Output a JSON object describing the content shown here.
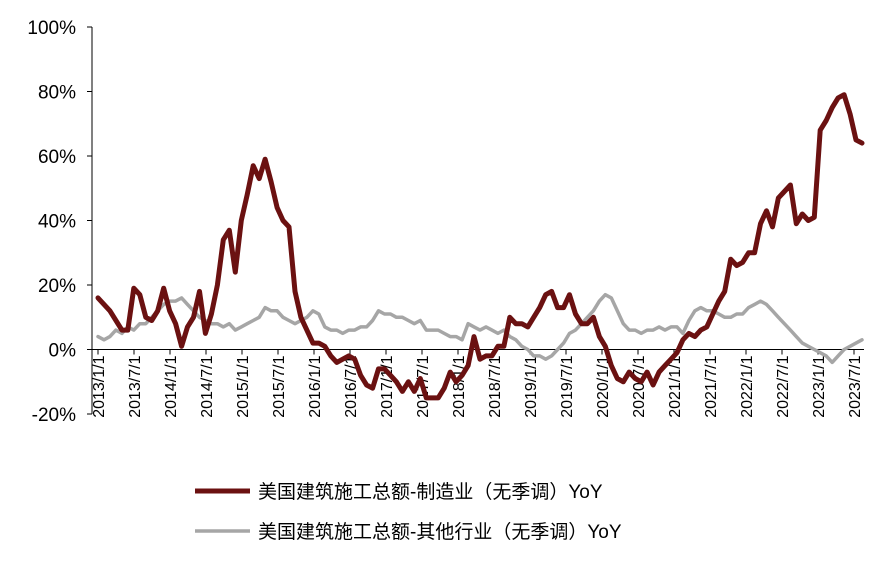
{
  "chart_data": {
    "type": "line",
    "title": "",
    "xlabel": "",
    "ylabel": "",
    "ylim": [
      -20,
      100
    ],
    "y_ticks": [
      -20,
      0,
      20,
      40,
      60,
      80,
      100
    ],
    "y_tick_labels": [
      "-20%",
      "0%",
      "20%",
      "40%",
      "60%",
      "80%",
      "100%"
    ],
    "x_start": "2013-01",
    "x_end": "2023-09",
    "x_tick_labels": [
      "2013/1/1",
      "2013/7/1",
      "2014/1/1",
      "2014/7/1",
      "2015/1/1",
      "2015/7/1",
      "2016/1/1",
      "2016/7/1",
      "2017/1/1",
      "2017/7/1",
      "2018/1/1",
      "2018/7/1",
      "2019/1/1",
      "2019/7/1",
      "2020/1/1",
      "2020/7/1",
      "2021/1/1",
      "2021/7/1",
      "2022/1/1",
      "2022/7/1",
      "2023/1/1",
      "2023/7/1"
    ],
    "legend_position": "bottom",
    "series": [
      {
        "name": "美国建筑施工总额-制造业（无季调）YoY",
        "color": "#6b1111",
        "points": [
          [
            "2013-01",
            16
          ],
          [
            "2013-03",
            12
          ],
          [
            "2013-05",
            6
          ],
          [
            "2013-06",
            6
          ],
          [
            "2013-07",
            19
          ],
          [
            "2013-08",
            17
          ],
          [
            "2013-09",
            10
          ],
          [
            "2013-10",
            9
          ],
          [
            "2013-11",
            12
          ],
          [
            "2013-12",
            19
          ],
          [
            "2014-01",
            12
          ],
          [
            "2014-02",
            8
          ],
          [
            "2014-03",
            1
          ],
          [
            "2014-04",
            7
          ],
          [
            "2014-05",
            10
          ],
          [
            "2014-06",
            18
          ],
          [
            "2014-07",
            5
          ],
          [
            "2014-08",
            11
          ],
          [
            "2014-09",
            20
          ],
          [
            "2014-10",
            34
          ],
          [
            "2014-11",
            37
          ],
          [
            "2014-12",
            24
          ],
          [
            "2015-01",
            40
          ],
          [
            "2015-02",
            48
          ],
          [
            "2015-03",
            57
          ],
          [
            "2015-04",
            53
          ],
          [
            "2015-05",
            59
          ],
          [
            "2015-06",
            52
          ],
          [
            "2015-07",
            44
          ],
          [
            "2015-08",
            40
          ],
          [
            "2015-09",
            38
          ],
          [
            "2015-10",
            18
          ],
          [
            "2015-11",
            10
          ],
          [
            "2016-01",
            2
          ],
          [
            "2016-02",
            2
          ],
          [
            "2016-03",
            1
          ],
          [
            "2016-04",
            -2
          ],
          [
            "2016-05",
            -4
          ],
          [
            "2016-06",
            -3
          ],
          [
            "2016-07",
            -2
          ],
          [
            "2016-08",
            -3
          ],
          [
            "2016-09",
            -8
          ],
          [
            "2016-10",
            -11
          ],
          [
            "2016-11",
            -12
          ],
          [
            "2016-12",
            -6
          ],
          [
            "2017-01",
            -6
          ],
          [
            "2017-02",
            -8
          ],
          [
            "2017-03",
            -10
          ],
          [
            "2017-04",
            -13
          ],
          [
            "2017-05",
            -10
          ],
          [
            "2017-06",
            -13
          ],
          [
            "2017-07",
            -9
          ],
          [
            "2017-08",
            -15
          ],
          [
            "2017-09",
            -15
          ],
          [
            "2017-10",
            -15
          ],
          [
            "2017-11",
            -12
          ],
          [
            "2017-12",
            -7
          ],
          [
            "2018-01",
            -10
          ],
          [
            "2018-02",
            -8
          ],
          [
            "2018-03",
            -5
          ],
          [
            "2018-04",
            4
          ],
          [
            "2018-05",
            -3
          ],
          [
            "2018-06",
            -2
          ],
          [
            "2018-07",
            -2
          ],
          [
            "2018-08",
            1
          ],
          [
            "2018-09",
            1
          ],
          [
            "2018-10",
            10
          ],
          [
            "2018-11",
            8
          ],
          [
            "2018-12",
            8
          ],
          [
            "2019-01",
            7
          ],
          [
            "2019-02",
            10
          ],
          [
            "2019-03",
            13
          ],
          [
            "2019-04",
            17
          ],
          [
            "2019-05",
            18
          ],
          [
            "2019-06",
            13
          ],
          [
            "2019-07",
            13
          ],
          [
            "2019-08",
            17
          ],
          [
            "2019-09",
            11
          ],
          [
            "2019-10",
            8
          ],
          [
            "2019-11",
            8
          ],
          [
            "2019-12",
            10
          ],
          [
            "2020-01",
            4
          ],
          [
            "2020-02",
            1
          ],
          [
            "2020-03",
            -5
          ],
          [
            "2020-04",
            -9
          ],
          [
            "2020-05",
            -10
          ],
          [
            "2020-06",
            -7
          ],
          [
            "2020-07",
            -9
          ],
          [
            "2020-08",
            -10
          ],
          [
            "2020-09",
            -7
          ],
          [
            "2020-10",
            -11
          ],
          [
            "2020-11",
            -7
          ],
          [
            "2020-12",
            -5
          ],
          [
            "2021-01",
            -3
          ],
          [
            "2021-02",
            -1
          ],
          [
            "2021-03",
            3
          ],
          [
            "2021-04",
            5
          ],
          [
            "2021-05",
            4
          ],
          [
            "2021-06",
            6
          ],
          [
            "2021-07",
            7
          ],
          [
            "2021-08",
            11
          ],
          [
            "2021-09",
            15
          ],
          [
            "2021-10",
            18
          ],
          [
            "2021-11",
            28
          ],
          [
            "2021-12",
            26
          ],
          [
            "2022-01",
            27
          ],
          [
            "2022-02",
            30
          ],
          [
            "2022-03",
            30
          ],
          [
            "2022-04",
            39
          ],
          [
            "2022-05",
            43
          ],
          [
            "2022-06",
            38
          ],
          [
            "2022-07",
            47
          ],
          [
            "2022-08",
            49
          ],
          [
            "2022-09",
            51
          ],
          [
            "2022-10",
            39
          ],
          [
            "2022-11",
            42
          ],
          [
            "2022-12",
            40
          ],
          [
            "2023-01",
            41
          ],
          [
            "2023-02",
            68
          ],
          [
            "2023-03",
            71
          ],
          [
            "2023-04",
            75
          ],
          [
            "2023-05",
            78
          ],
          [
            "2023-06",
            79
          ],
          [
            "2023-07",
            73
          ],
          [
            "2023-08",
            65
          ],
          [
            "2023-09",
            64
          ]
        ]
      },
      {
        "name": "美国建筑施工总额-其他行业（无季调）YoY",
        "color": "#a6a6a6",
        "points": [
          [
            "2013-01",
            4
          ],
          [
            "2013-02",
            3
          ],
          [
            "2013-03",
            4
          ],
          [
            "2013-04",
            6
          ],
          [
            "2013-05",
            5
          ],
          [
            "2013-06",
            7
          ],
          [
            "2013-07",
            6
          ],
          [
            "2013-08",
            8
          ],
          [
            "2013-09",
            8
          ],
          [
            "2013-10",
            10
          ],
          [
            "2013-11",
            12
          ],
          [
            "2013-12",
            14
          ],
          [
            "2014-01",
            15
          ],
          [
            "2014-02",
            15
          ],
          [
            "2014-03",
            16
          ],
          [
            "2014-04",
            14
          ],
          [
            "2014-05",
            12
          ],
          [
            "2014-06",
            10
          ],
          [
            "2014-07",
            9
          ],
          [
            "2014-08",
            8
          ],
          [
            "2014-09",
            8
          ],
          [
            "2014-10",
            7
          ],
          [
            "2014-11",
            8
          ],
          [
            "2014-12",
            6
          ],
          [
            "2015-01",
            7
          ],
          [
            "2015-02",
            8
          ],
          [
            "2015-03",
            9
          ],
          [
            "2015-04",
            10
          ],
          [
            "2015-05",
            13
          ],
          [
            "2015-06",
            12
          ],
          [
            "2015-07",
            12
          ],
          [
            "2015-08",
            10
          ],
          [
            "2015-09",
            9
          ],
          [
            "2015-10",
            8
          ],
          [
            "2015-11",
            9
          ],
          [
            "2015-12",
            10
          ],
          [
            "2016-01",
            12
          ],
          [
            "2016-02",
            11
          ],
          [
            "2016-03",
            7
          ],
          [
            "2016-04",
            6
          ],
          [
            "2016-05",
            6
          ],
          [
            "2016-06",
            5
          ],
          [
            "2016-07",
            6
          ],
          [
            "2016-08",
            6
          ],
          [
            "2016-09",
            7
          ],
          [
            "2016-10",
            7
          ],
          [
            "2016-11",
            9
          ],
          [
            "2016-12",
            12
          ],
          [
            "2017-01",
            11
          ],
          [
            "2017-02",
            11
          ],
          [
            "2017-03",
            10
          ],
          [
            "2017-04",
            10
          ],
          [
            "2017-05",
            9
          ],
          [
            "2017-06",
            8
          ],
          [
            "2017-07",
            9
          ],
          [
            "2017-08",
            6
          ],
          [
            "2017-09",
            6
          ],
          [
            "2017-10",
            6
          ],
          [
            "2017-11",
            5
          ],
          [
            "2017-12",
            4
          ],
          [
            "2018-01",
            4
          ],
          [
            "2018-02",
            3
          ],
          [
            "2018-03",
            8
          ],
          [
            "2018-04",
            7
          ],
          [
            "2018-05",
            6
          ],
          [
            "2018-06",
            7
          ],
          [
            "2018-07",
            6
          ],
          [
            "2018-08",
            5
          ],
          [
            "2018-09",
            6
          ],
          [
            "2018-10",
            4
          ],
          [
            "2018-11",
            3
          ],
          [
            "2018-12",
            1
          ],
          [
            "2019-01",
            0
          ],
          [
            "2019-02",
            -2
          ],
          [
            "2019-03",
            -2
          ],
          [
            "2019-04",
            -3
          ],
          [
            "2019-05",
            -2
          ],
          [
            "2019-06",
            0
          ],
          [
            "2019-07",
            2
          ],
          [
            "2019-08",
            5
          ],
          [
            "2019-09",
            6
          ],
          [
            "2019-10",
            8
          ],
          [
            "2019-11",
            10
          ],
          [
            "2019-12",
            12
          ],
          [
            "2020-01",
            15
          ],
          [
            "2020-02",
            17
          ],
          [
            "2020-03",
            16
          ],
          [
            "2020-04",
            12
          ],
          [
            "2020-05",
            8
          ],
          [
            "2020-06",
            6
          ],
          [
            "2020-07",
            6
          ],
          [
            "2020-08",
            5
          ],
          [
            "2020-09",
            6
          ],
          [
            "2020-10",
            6
          ],
          [
            "2020-11",
            7
          ],
          [
            "2020-12",
            6
          ],
          [
            "2021-01",
            7
          ],
          [
            "2021-02",
            7
          ],
          [
            "2021-03",
            5
          ],
          [
            "2021-04",
            9
          ],
          [
            "2021-05",
            12
          ],
          [
            "2021-06",
            13
          ],
          [
            "2021-07",
            12
          ],
          [
            "2021-08",
            12
          ],
          [
            "2021-09",
            11
          ],
          [
            "2021-10",
            10
          ],
          [
            "2021-11",
            10
          ],
          [
            "2021-12",
            11
          ],
          [
            "2022-01",
            11
          ],
          [
            "2022-02",
            13
          ],
          [
            "2022-03",
            14
          ],
          [
            "2022-04",
            15
          ],
          [
            "2022-05",
            14
          ],
          [
            "2022-06",
            12
          ],
          [
            "2022-07",
            10
          ],
          [
            "2022-08",
            8
          ],
          [
            "2022-09",
            6
          ],
          [
            "2022-10",
            4
          ],
          [
            "2022-11",
            2
          ],
          [
            "2022-12",
            1
          ],
          [
            "2023-01",
            0
          ],
          [
            "2023-02",
            -1
          ],
          [
            "2023-03",
            -2
          ],
          [
            "2023-04",
            -4
          ],
          [
            "2023-05",
            -2
          ],
          [
            "2023-06",
            0
          ],
          [
            "2023-07",
            1
          ],
          [
            "2023-08",
            2
          ],
          [
            "2023-09",
            3
          ]
        ]
      }
    ]
  }
}
